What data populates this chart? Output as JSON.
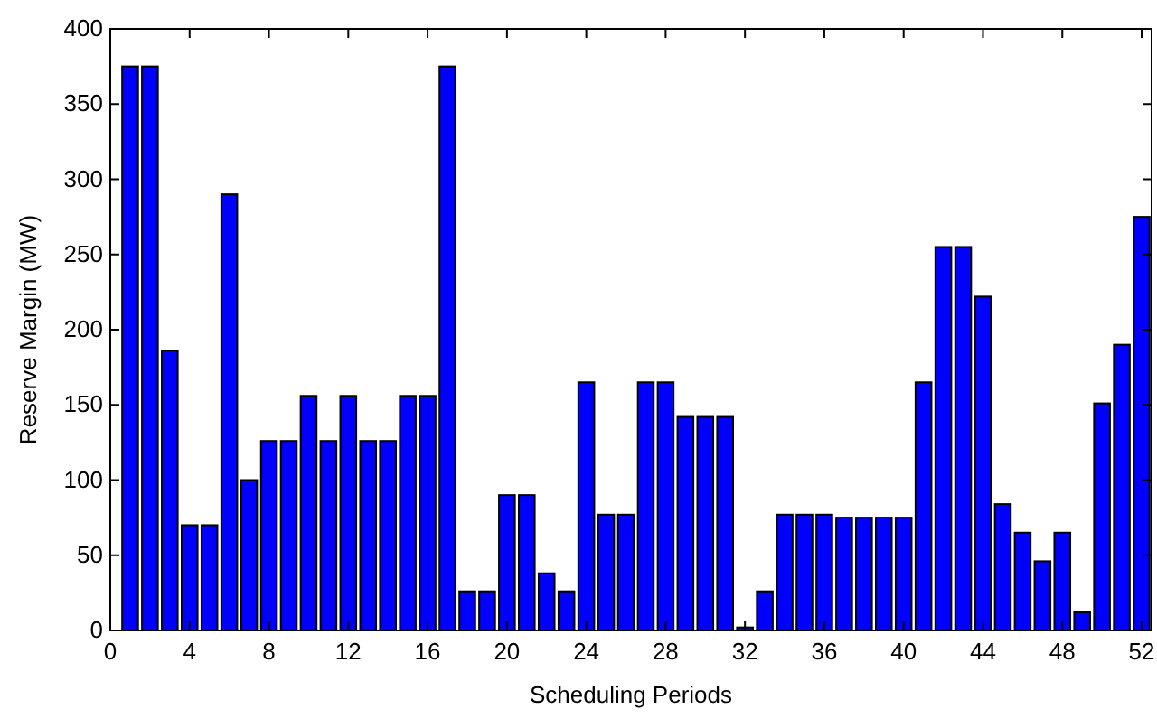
{
  "chart_data": {
    "type": "bar",
    "xlabel": "Scheduling Periods",
    "ylabel": "Reserve Margin (MW)",
    "x": [
      1,
      2,
      3,
      4,
      5,
      6,
      7,
      8,
      9,
      10,
      11,
      12,
      13,
      14,
      15,
      16,
      17,
      18,
      19,
      20,
      21,
      22,
      23,
      24,
      25,
      26,
      27,
      28,
      29,
      30,
      31,
      32,
      33,
      34,
      35,
      36,
      37,
      38,
      39,
      40,
      41,
      42,
      43,
      44,
      45,
      46,
      47,
      48,
      49,
      50,
      51,
      52
    ],
    "values": [
      375,
      375,
      186,
      70,
      70,
      290,
      100,
      126,
      126,
      156,
      126,
      156,
      126,
      126,
      156,
      156,
      375,
      26,
      26,
      90,
      90,
      38,
      26,
      165,
      77,
      77,
      165,
      165,
      142,
      142,
      142,
      2,
      26,
      77,
      77,
      77,
      75,
      75,
      75,
      75,
      165,
      255,
      255,
      222,
      84,
      65,
      46,
      65,
      12,
      151,
      190,
      275
    ],
    "color": "#0000ff",
    "xlim": [
      0,
      52.5
    ],
    "xticks": [
      0,
      4,
      8,
      12,
      16,
      20,
      24,
      28,
      32,
      36,
      40,
      44,
      48,
      52
    ],
    "ylim": [
      0,
      400
    ],
    "yticks": [
      0,
      50,
      100,
      150,
      200,
      250,
      300,
      350,
      400
    ],
    "grid": false
  }
}
